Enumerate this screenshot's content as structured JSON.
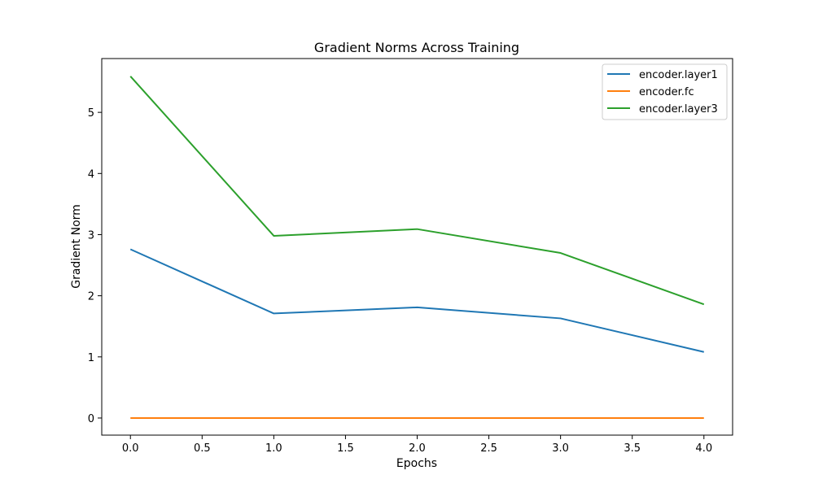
{
  "chart_data": {
    "type": "line",
    "title": "Gradient Norms Across Training",
    "xlabel": "Epochs",
    "ylabel": "Gradient Norm",
    "x": [
      0,
      1,
      2,
      3,
      4
    ],
    "xlim": [
      -0.2,
      4.2
    ],
    "ylim": [
      -0.28,
      5.88
    ],
    "xticks": [
      0.0,
      0.5,
      1.0,
      1.5,
      2.0,
      2.5,
      3.0,
      3.5,
      4.0
    ],
    "xtick_labels": [
      "0.0",
      "0.5",
      "1.0",
      "1.5",
      "2.0",
      "2.5",
      "3.0",
      "3.5",
      "4.0"
    ],
    "yticks": [
      0,
      1,
      2,
      3,
      4,
      5
    ],
    "ytick_labels": [
      "0",
      "1",
      "2",
      "3",
      "4",
      "5"
    ],
    "grid": false,
    "legend_position": "top-right",
    "series": [
      {
        "name": "encoder.layer1",
        "color": "#1f77b4",
        "values": [
          2.76,
          1.71,
          1.81,
          1.63,
          1.08
        ]
      },
      {
        "name": "encoder.fc",
        "color": "#ff7f0e",
        "values": [
          0.0,
          0.0,
          0.0,
          0.0,
          0.0
        ]
      },
      {
        "name": "encoder.layer3",
        "color": "#2ca02c",
        "values": [
          5.59,
          2.98,
          3.09,
          2.7,
          1.86
        ]
      }
    ]
  }
}
